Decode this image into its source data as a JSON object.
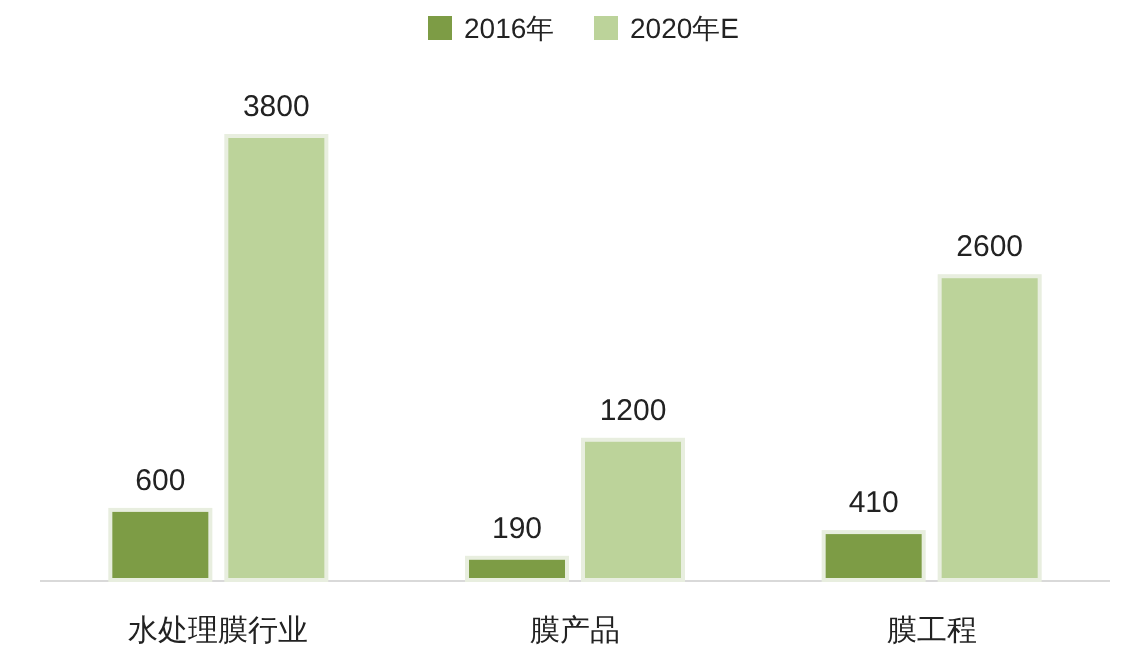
{
  "chart_data": {
    "type": "bar",
    "categories": [
      "水处理膜行业",
      "膜产品",
      "膜工程"
    ],
    "series": [
      {
        "name": "2016年",
        "color": "#7d9c45",
        "values": [
          600,
          190,
          410
        ]
      },
      {
        "name": "2020年E",
        "color": "#bcd39a",
        "values": [
          3800,
          1200,
          2600
        ]
      }
    ],
    "data_labels": true,
    "legend": "top"
  }
}
